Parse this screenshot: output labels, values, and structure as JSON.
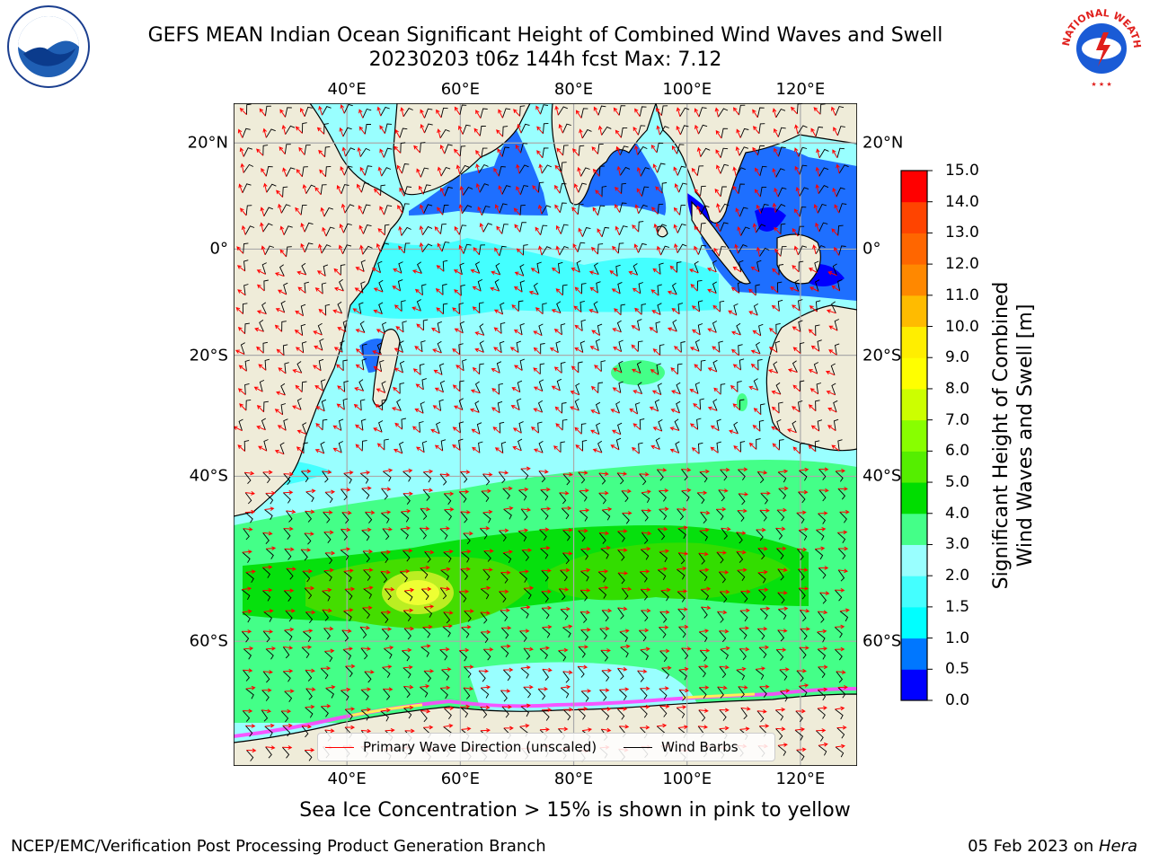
{
  "title": {
    "line1": "GEFS MEAN Indian Ocean Significant Height of Combined Wind Waves and Swell",
    "line2": "20230203 t06z 144h fcst   Max: 7.12"
  },
  "logos": {
    "left": "noaa-logo",
    "right": "nws-logo",
    "right_text": "NATIONAL WEATHER SERVICE"
  },
  "map": {
    "lon_range": [
      20,
      130
    ],
    "lat_range": [
      -70,
      27
    ],
    "lon_ticks": [
      "40°E",
      "60°E",
      "80°E",
      "100°E",
      "120°E"
    ],
    "lat_ticks": [
      "20°N",
      "0°",
      "20°S",
      "40°S",
      "60°S"
    ],
    "gridlines": true,
    "land_color": "#efecd9",
    "vector_overlay": true
  },
  "legend": {
    "wave_label": "Primary Wave Direction (unscaled)",
    "wave_color": "#ff0000",
    "wind_label": "Wind Barbs",
    "wind_color": "#000000"
  },
  "colorbar": {
    "label": "Significant Height of Combined\nWind Waves and Swell [m]",
    "ticks": [
      "15.0",
      "14.0",
      "13.0",
      "12.0",
      "11.0",
      "10.0",
      "9.0",
      "8.0",
      "7.0",
      "6.0",
      "5.0",
      "4.0",
      "3.0",
      "2.0",
      "1.5",
      "1.0",
      "0.5",
      "0.0"
    ],
    "colors": [
      "#0000ff",
      "#0077ff",
      "#00ffff",
      "#44ffff",
      "#99ffff",
      "#44ff88",
      "#00dd00",
      "#55ee00",
      "#88ff00",
      "#ccff00",
      "#ffff00",
      "#ffee00",
      "#ffbb00",
      "#ff8800",
      "#ff6600",
      "#ff4400",
      "#ff0000"
    ]
  },
  "caption": "Sea Ice Concentration > 15% is shown in pink to yellow",
  "footer": {
    "left": "NCEP/EMC/Verification Post Processing Product Generation Branch",
    "date": "05 Feb 2023 on ",
    "host": "Hera"
  }
}
